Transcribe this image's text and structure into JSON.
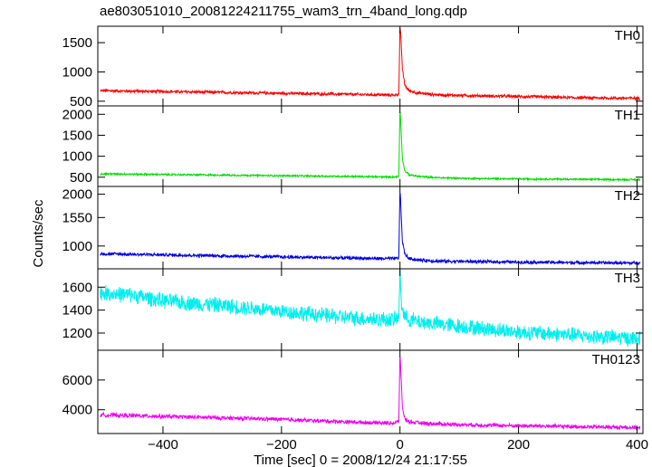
{
  "chart_data": {
    "type": "line",
    "title": "ae803051010_20081224211755_wam3_trn_4band_long.qdp",
    "xlabel": "Time [sec] 0 = 2008/12/24 21:17:55",
    "ylabel": "Counts/sec",
    "xlim": [
      -510,
      410
    ],
    "x_ticks": [
      -400,
      -200,
      0,
      200,
      400
    ],
    "x_tick_labels": [
      "−400",
      "−200",
      "0",
      "200",
      "400"
    ],
    "panels": [
      {
        "name": "TH0",
        "color": "#ff0000",
        "ylim": [
          420,
          1780
        ],
        "y_ticks": [
          500,
          1000,
          1500
        ],
        "y_tick_labels": [
          "500",
          "1000",
          "1500"
        ],
        "x": [
          -505,
          -400,
          -300,
          -200,
          -100,
          -40,
          -10,
          -2,
          0,
          2,
          4,
          8,
          15,
          30,
          60,
          120,
          200,
          300,
          400
        ],
        "y": [
          680,
          665,
          650,
          635,
          620,
          610,
          605,
          620,
          1780,
          1500,
          1050,
          780,
          680,
          640,
          610,
          595,
          580,
          560,
          550
        ]
      },
      {
        "name": "TH1",
        "color": "#00dd00",
        "ylim": [
          280,
          2200
        ],
        "y_ticks": [
          500,
          1000,
          1500,
          2000
        ],
        "y_tick_labels": [
          "500",
          "1000",
          "1500",
          "2000"
        ],
        "x": [
          -505,
          -400,
          -300,
          -200,
          -100,
          -40,
          -10,
          -2,
          0,
          2,
          4,
          8,
          15,
          30,
          60,
          120,
          200,
          300,
          400
        ],
        "y": [
          580,
          565,
          550,
          535,
          520,
          510,
          505,
          520,
          2150,
          1600,
          950,
          650,
          560,
          520,
          490,
          470,
          460,
          450,
          440
        ]
      },
      {
        "name": "TH2",
        "color": "#0000dd",
        "ylim": [
          560,
          2150
        ],
        "y_ticks": [
          1000,
          1550,
          2000
        ],
        "y_tick_labels": [
          "1000",
          "1550",
          "2000"
        ],
        "x": [
          -505,
          -400,
          -300,
          -200,
          -100,
          -40,
          -10,
          -2,
          0,
          2,
          4,
          8,
          15,
          30,
          60,
          120,
          200,
          300,
          400
        ],
        "y": [
          850,
          830,
          810,
          790,
          770,
          760,
          755,
          770,
          2150,
          1600,
          1100,
          850,
          760,
          730,
          710,
          700,
          690,
          680,
          670
        ]
      },
      {
        "name": "TH3",
        "color": "#00eeee",
        "ylim": [
          1050,
          1760
        ],
        "y_ticks": [
          1200,
          1400,
          1600
        ],
        "y_tick_labels": [
          "1200",
          "1400",
          "1600"
        ],
        "x": [
          -505,
          -450,
          -400,
          -300,
          -200,
          -100,
          -40,
          -10,
          -2,
          0,
          3,
          10,
          30,
          60,
          120,
          200,
          300,
          400
        ],
        "y": [
          1550,
          1530,
          1480,
          1440,
          1390,
          1340,
          1320,
          1315,
          1330,
          1760,
          1420,
          1330,
          1300,
          1280,
          1250,
          1210,
          1180,
          1150
        ]
      },
      {
        "name": "TH0123",
        "color": "#ee00ee",
        "ylim": [
          2400,
          8000
        ],
        "y_ticks": [
          4000,
          6000
        ],
        "y_tick_labels": [
          "4000",
          "6000"
        ],
        "x": [
          -505,
          -400,
          -300,
          -200,
          -100,
          -40,
          -10,
          -2,
          0,
          2,
          4,
          8,
          15,
          30,
          60,
          120,
          200,
          300,
          400
        ],
        "y": [
          3650,
          3550,
          3450,
          3350,
          3200,
          3120,
          3100,
          3200,
          7900,
          6000,
          4200,
          3400,
          3200,
          3120,
          3050,
          2980,
          2920,
          2860,
          2800
        ]
      }
    ]
  }
}
